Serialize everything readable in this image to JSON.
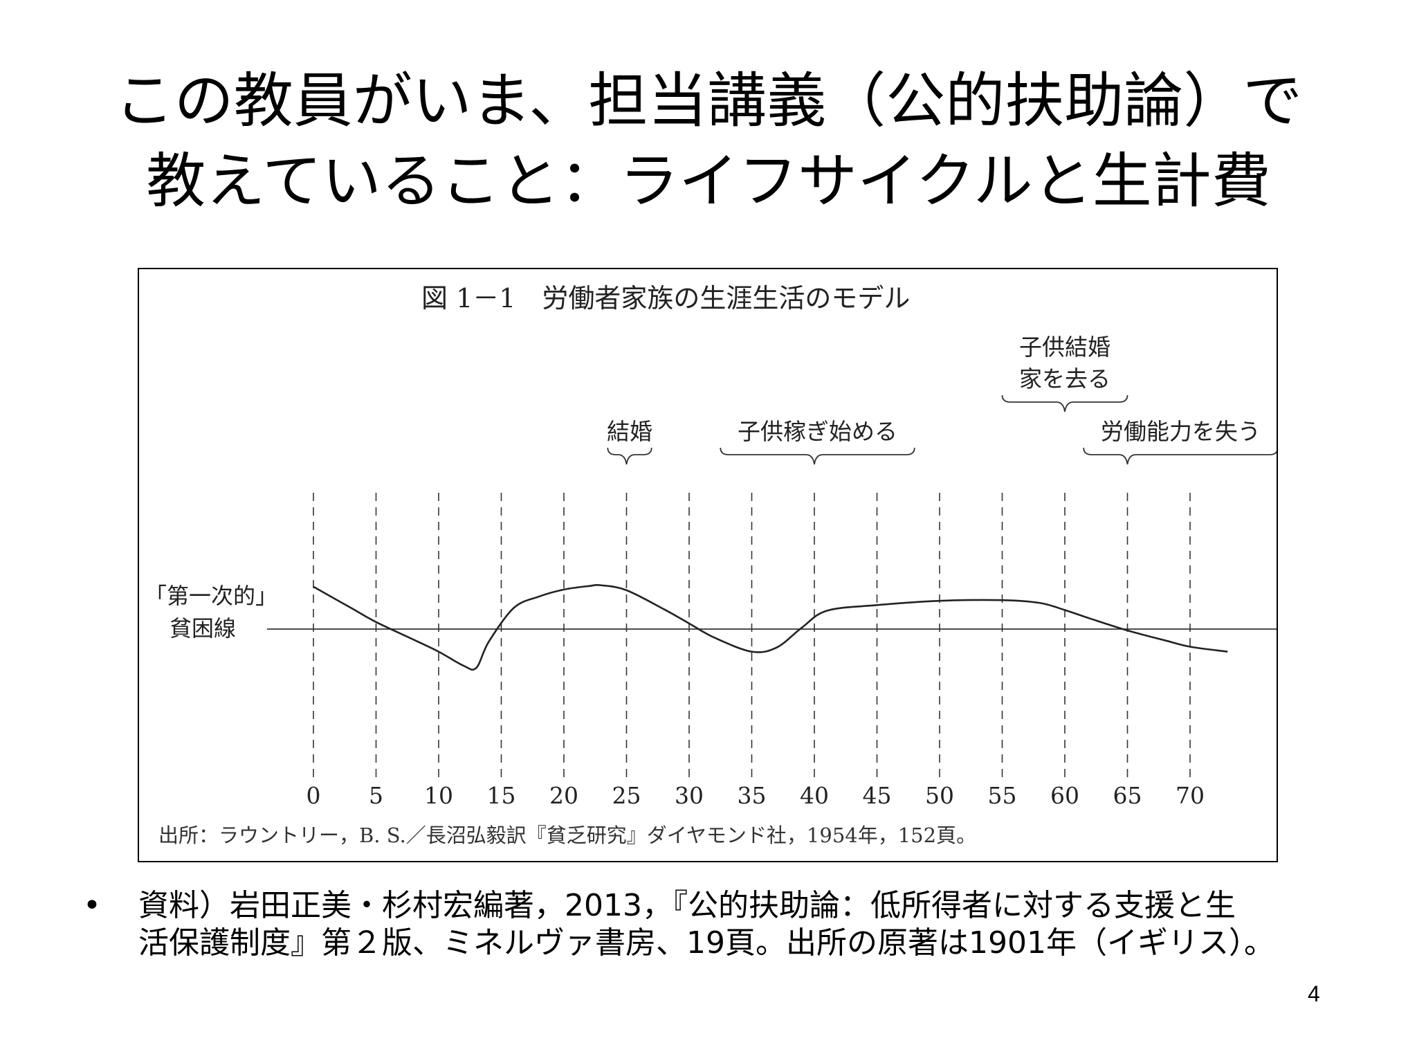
{
  "slide": {
    "title_lines": [
      "この教員がいま、担当講義（公的扶助論）で",
      "教えていること：ライフサイクルと生計費"
    ],
    "bullet": "•",
    "reference_lines": [
      "資料）岩田正美・杉村宏編著，2013，『公的扶助論：低所得者に対する支援と生",
      "活保護制度』第２版、ミネルヴァ書房、19頁。出所の原著は1901年（イギリス）。"
    ],
    "page_number": "4"
  },
  "chart_data": {
    "type": "line",
    "title": "図 1－1　労働者家族の生涯生活のモデル",
    "xlabel": "",
    "ylabel": "",
    "x_ticks": [
      0,
      5,
      10,
      15,
      20,
      25,
      30,
      35,
      40,
      45,
      50,
      55,
      60,
      65,
      70
    ],
    "xlim": [
      0,
      77
    ],
    "ylim": [
      -1,
      1
    ],
    "grid": "dashed vertical lines at each x tick",
    "poverty_line": {
      "label_lines": [
        "「第一次的」",
        "貧困線"
      ],
      "y": 0
    },
    "series": [
      {
        "name": "",
        "x": [
          0,
          3,
          5,
          8,
          10,
          12,
          13,
          14,
          16,
          18,
          20,
          22,
          23,
          25,
          28,
          30,
          32,
          35,
          37,
          39,
          41,
          45,
          50,
          55,
          58,
          60,
          62,
          65,
          68,
          70,
          73
        ],
        "y": [
          0.6,
          0.3,
          0.1,
          -0.15,
          -0.32,
          -0.52,
          -0.55,
          -0.18,
          0.3,
          0.46,
          0.56,
          0.61,
          0.62,
          0.55,
          0.28,
          0.08,
          -0.12,
          -0.32,
          -0.26,
          0.02,
          0.26,
          0.34,
          0.4,
          0.41,
          0.37,
          0.27,
          0.15,
          -0.02,
          -0.16,
          -0.25,
          -0.32
        ]
      }
    ],
    "annotations": [
      {
        "lines": [
          "結婚"
        ],
        "x_from": 23.5,
        "x_to": 27,
        "x_point": 25,
        "level": "low"
      },
      {
        "lines": [
          "子供稼ぎ始める"
        ],
        "x_from": 32.5,
        "x_to": 48,
        "x_point": 40,
        "level": "low"
      },
      {
        "lines": [
          "子供結婚",
          "家を去る"
        ],
        "x_from": 55,
        "x_to": 65,
        "x_point": 60,
        "level": "high"
      },
      {
        "lines": [
          "労働能力を失う"
        ],
        "x_from": 61.5,
        "x_to": 77,
        "x_point": 65,
        "level": "low"
      }
    ],
    "source": "出所：ラウントリー，B. S.／長沼弘毅訳『貧乏研究』ダイヤモンド社，1954年，152頁。"
  }
}
